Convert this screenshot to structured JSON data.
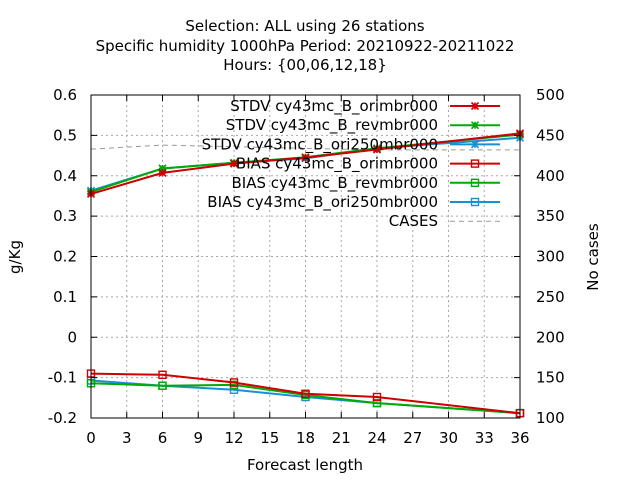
{
  "chart_data": {
    "type": "line",
    "title_lines": [
      "Selection: ALL using    26 stations",
      "Specific humidity 1000hPa   Period: 20210922-20211022",
      "Hours: {00,06,12,18}"
    ],
    "xlabel": "Forecast length",
    "ylabel": "g/Kg",
    "y2label": "No cases",
    "x_ticks": [
      0,
      3,
      6,
      9,
      12,
      15,
      18,
      21,
      24,
      27,
      30,
      33,
      36
    ],
    "y_ticks": [
      "0.6",
      "0.5",
      "0.4",
      "0.3",
      "0.2",
      "0.1",
      "0",
      "-0.1",
      "-0.2"
    ],
    "y2_ticks": [
      "500",
      "450",
      "400",
      "350",
      "300",
      "250",
      "200",
      "150",
      "100"
    ],
    "xlim": [
      0,
      36
    ],
    "ylim": [
      -0.2,
      0.6
    ],
    "y2lim": [
      100,
      500
    ],
    "grid": true,
    "legend_position": "top-right",
    "x": [
      0,
      6,
      12,
      18,
      24,
      36
    ],
    "series": [
      {
        "name": "STDV cy43mc_B_orimbr000",
        "color": "#cc0000",
        "marker": "x",
        "axis": "left",
        "values": [
          0.355,
          0.407,
          0.43,
          0.445,
          0.465,
          0.505
        ]
      },
      {
        "name": "STDV cy43mc_B_revmbr000",
        "color": "#00aa00",
        "marker": "x",
        "axis": "left",
        "values": [
          0.36,
          0.418,
          0.432,
          0.446,
          0.468,
          0.502
        ]
      },
      {
        "name": "STDV cy43mc_B_ori250mbr000",
        "color": "#1a8fd6",
        "marker": "x",
        "axis": "left",
        "values": [
          0.363,
          0.418,
          0.432,
          0.443,
          0.468,
          0.494
        ]
      },
      {
        "name": "BIAS cy43mc_B_orimbr000",
        "color": "#cc0000",
        "marker": "square",
        "axis": "left",
        "values": [
          -0.09,
          -0.093,
          -0.112,
          -0.14,
          -0.148,
          -0.188
        ]
      },
      {
        "name": "BIAS cy43mc_B_revmbr000",
        "color": "#00aa00",
        "marker": "square",
        "axis": "left",
        "values": [
          -0.114,
          -0.12,
          -0.118,
          -0.143,
          -0.163,
          -0.188
        ]
      },
      {
        "name": "BIAS cy43mc_B_ori250mbr000",
        "color": "#1a8fd6",
        "marker": "square",
        "axis": "left",
        "values": [
          -0.107,
          -0.12,
          -0.13,
          -0.148,
          -0.163,
          -0.188
        ]
      },
      {
        "name": "CASES",
        "color": "#999999",
        "marker": "none",
        "dashed": true,
        "axis": "right",
        "values": [
          433,
          438,
          436,
          434,
          432,
          432
        ]
      }
    ]
  }
}
